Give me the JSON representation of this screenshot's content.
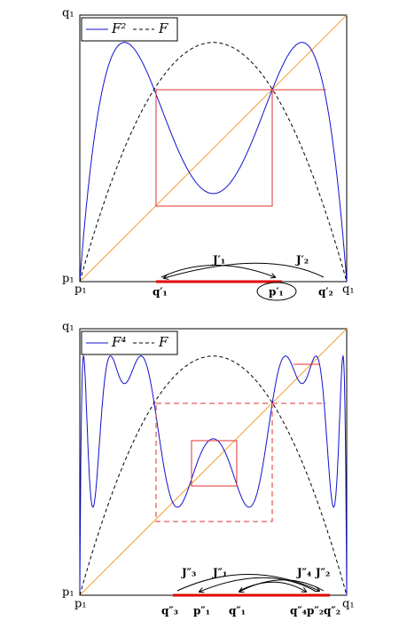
{
  "top": {
    "legend": {
      "iterate": "F²",
      "map": "F"
    },
    "axis": {
      "q1_left": "q₁",
      "p1_left": "p₁",
      "p1_bottom": "p₁",
      "q1_right": "q₁"
    },
    "points": {
      "q1": "q′₁",
      "p1": "p′₁",
      "q2": "q′₂"
    },
    "intervals": {
      "J1": "J′₁",
      "J2": "J′₂"
    }
  },
  "bottom": {
    "legend": {
      "iterate": "F⁴",
      "map": "F"
    },
    "axis": {
      "q1_left": "q₁",
      "p1_left": "p₁",
      "p1_bottom": "p₁",
      "q1_right": "q₁"
    },
    "points": {
      "q3": "q″₃",
      "p1": "p″₁",
      "q1": "q″₁",
      "q4": "q″₄",
      "p2": "p″₂",
      "q2": "q″₂"
    },
    "intervals": {
      "J3": "J″₃",
      "J1": "J″₁",
      "J4": "J″₄",
      "J2": "J″₂"
    }
  }
}
